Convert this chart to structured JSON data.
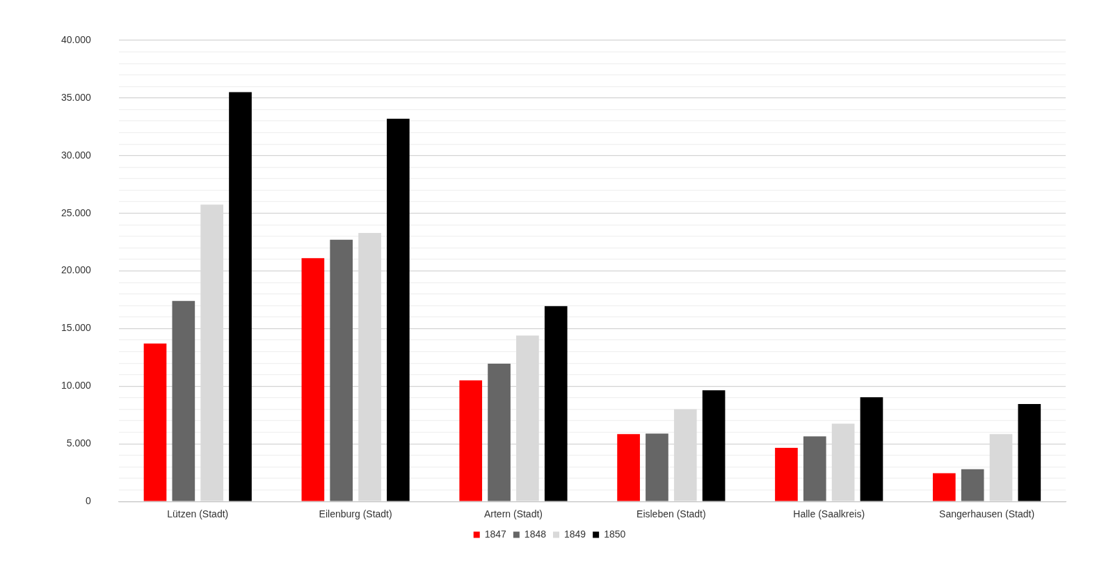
{
  "chart_data": {
    "type": "bar",
    "categories": [
      "Lützen (Stadt)",
      "Eilenburg (Stadt)",
      "Artern (Stadt)",
      "Eisleben (Stadt)",
      "Halle (Saalkreis)",
      "Sangerhausen (Stadt)"
    ],
    "series": [
      {
        "name": "1847",
        "color": "#ff0000",
        "values": [
          13700,
          21100,
          10500,
          5850,
          4650,
          2450
        ]
      },
      {
        "name": "1848",
        "color": "#666666",
        "values": [
          17400,
          22700,
          11950,
          5900,
          5650,
          2800
        ]
      },
      {
        "name": "1849",
        "color": "#d9d9d9",
        "values": [
          25750,
          23300,
          14400,
          8000,
          6750,
          5850
        ]
      },
      {
        "name": "1850",
        "color": "#000000",
        "values": [
          35500,
          33200,
          16950,
          9650,
          9050,
          8450
        ]
      }
    ],
    "ylim": [
      0,
      40000
    ],
    "yticks": [
      {
        "value": 0,
        "label": "0"
      },
      {
        "value": 1000,
        "label": null
      },
      {
        "value": 2000,
        "label": null
      },
      {
        "value": 3000,
        "label": null
      },
      {
        "value": 4000,
        "label": null
      },
      {
        "value": 5000,
        "label": "5.000"
      },
      {
        "value": 6000,
        "label": null
      },
      {
        "value": 7000,
        "label": null
      },
      {
        "value": 8000,
        "label": null
      },
      {
        "value": 9000,
        "label": null
      },
      {
        "value": 10000,
        "label": "10.000"
      },
      {
        "value": 11000,
        "label": null
      },
      {
        "value": 12000,
        "label": null
      },
      {
        "value": 13000,
        "label": null
      },
      {
        "value": 14000,
        "label": null
      },
      {
        "value": 15000,
        "label": "15.000"
      },
      {
        "value": 16000,
        "label": null
      },
      {
        "value": 17000,
        "label": null
      },
      {
        "value": 18000,
        "label": null
      },
      {
        "value": 19000,
        "label": null
      },
      {
        "value": 20000,
        "label": "20.000"
      },
      {
        "value": 21000,
        "label": null
      },
      {
        "value": 22000,
        "label": null
      },
      {
        "value": 23000,
        "label": null
      },
      {
        "value": 24000,
        "label": null
      },
      {
        "value": 25000,
        "label": "25.000"
      },
      {
        "value": 26000,
        "label": null
      },
      {
        "value": 27000,
        "label": null
      },
      {
        "value": 28000,
        "label": null
      },
      {
        "value": 29000,
        "label": null
      },
      {
        "value": 30000,
        "label": "30.000"
      },
      {
        "value": 31000,
        "label": null
      },
      {
        "value": 32000,
        "label": null
      },
      {
        "value": 33000,
        "label": null
      },
      {
        "value": 34000,
        "label": null
      },
      {
        "value": 35000,
        "label": "35.000"
      },
      {
        "value": 36000,
        "label": null
      },
      {
        "value": 37000,
        "label": null
      },
      {
        "value": 38000,
        "label": null
      },
      {
        "value": 39000,
        "label": null
      },
      {
        "value": 40000,
        "label": "40.000"
      }
    ],
    "grid": "y",
    "legend": "bottom"
  }
}
